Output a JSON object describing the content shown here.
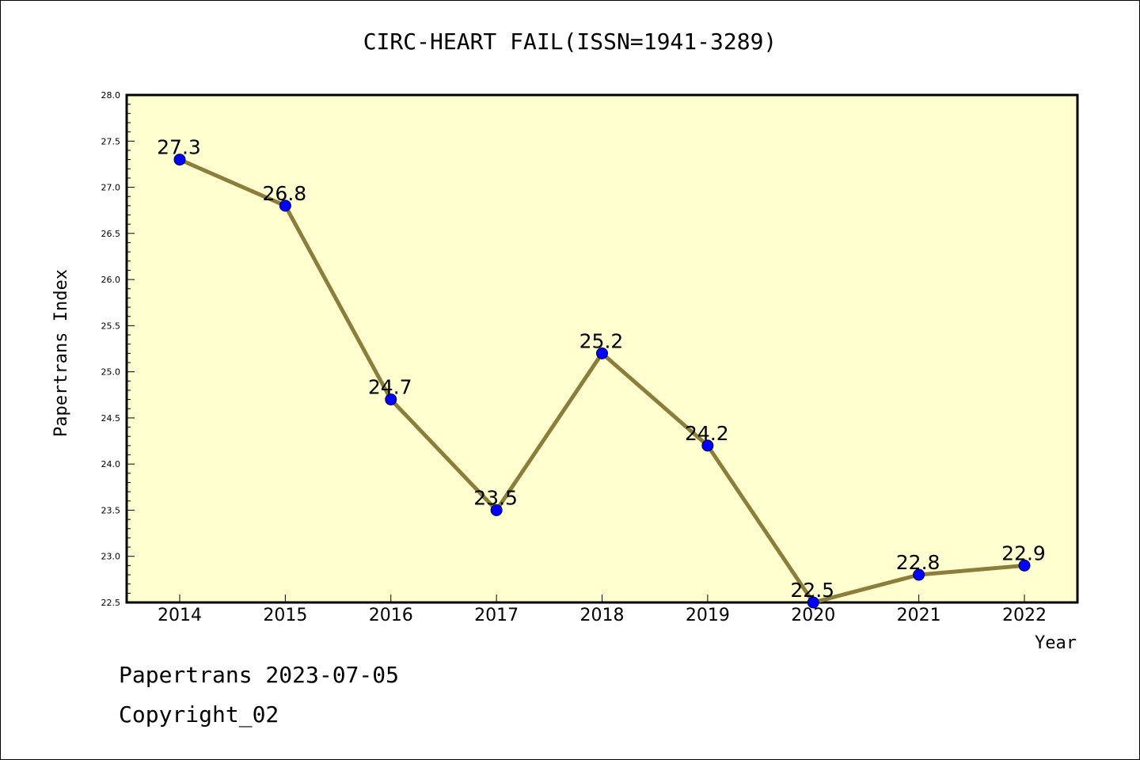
{
  "chart_data": {
    "type": "line",
    "title": "CIRC-HEART FAIL(ISSN=1941-3289)",
    "xlabel": "Year",
    "ylabel": "Papertrans Index",
    "categories": [
      "2014",
      "2015",
      "2016",
      "2017",
      "2018",
      "2019",
      "2020",
      "2021",
      "2022"
    ],
    "values": [
      27.3,
      26.8,
      24.7,
      23.5,
      25.2,
      24.2,
      22.5,
      22.8,
      22.9
    ],
    "data_labels": [
      "27.3",
      "26.8",
      "24.7",
      "23.5",
      "25.2",
      "24.2",
      "22.5",
      "22.8",
      "22.9"
    ],
    "ylim": [
      22.5,
      28.0
    ],
    "yticks": [
      "22.5",
      "23.0",
      "23.5",
      "24.0",
      "24.5",
      "25.0",
      "25.5",
      "26.0",
      "26.5",
      "27.0",
      "27.5",
      "28.0"
    ],
    "grid": false,
    "colors": {
      "plot_background": "#ffffd0",
      "line": "#8b7d3a",
      "marker": "#0000ff"
    }
  },
  "footer": {
    "line1": "Papertrans 2023-07-05",
    "line2": "Copyright_02"
  }
}
